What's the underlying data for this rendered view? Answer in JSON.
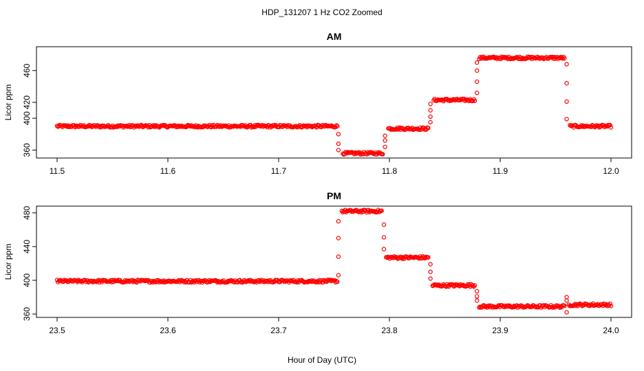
{
  "page_title": "HDP_131207  1 Hz CO2 Zoomed",
  "xlabel": "Hour of Day (UTC)",
  "colors": {
    "points": "#ff0000",
    "axes": "#000000",
    "background": "#ffffff"
  },
  "chart_data": [
    {
      "type": "scatter",
      "title": "AM",
      "ylabel": "Licor ppm",
      "xlim": [
        11.5,
        12.0
      ],
      "ylim": [
        350,
        490
      ],
      "x_ticks": [
        "11.5",
        "11.6",
        "11.7",
        "11.8",
        "11.9",
        "12.0"
      ],
      "y_ticks": [
        "360",
        "400",
        "420",
        "460"
      ],
      "grid": false,
      "segments": [
        {
          "x_start": 11.5,
          "x_end": 11.753,
          "y": 390
        },
        {
          "x_start": 11.758,
          "x_end": 11.794,
          "y": 356
        },
        {
          "x_start": 11.799,
          "x_end": 11.835,
          "y": 387
        },
        {
          "x_start": 11.84,
          "x_end": 11.877,
          "y": 423
        },
        {
          "x_start": 11.881,
          "x_end": 11.958,
          "y": 476
        },
        {
          "x_start": 11.963,
          "x_end": 12.0,
          "y": 390
        }
      ],
      "transitions": [
        {
          "x": 11.754,
          "y": [
            380,
            368,
            360
          ]
        },
        {
          "x": 11.796,
          "y": [
            364,
            372,
            378
          ]
        },
        {
          "x": 11.837,
          "y": [
            395,
            402,
            410,
            418
          ]
        },
        {
          "x": 11.879,
          "y": [
            432,
            446,
            460,
            470
          ]
        },
        {
          "x": 11.96,
          "y": [
            468,
            444,
            421,
            399
          ]
        }
      ]
    },
    {
      "type": "scatter",
      "title": "PM",
      "ylabel": "Licor ppm",
      "xlim": [
        23.5,
        24.0
      ],
      "ylim": [
        356,
        488
      ],
      "x_ticks": [
        "23.5",
        "23.6",
        "23.7",
        "23.8",
        "23.9",
        "24.0"
      ],
      "y_ticks": [
        "360",
        "400",
        "440",
        "480"
      ],
      "grid": false,
      "segments": [
        {
          "x_start": 23.5,
          "x_end": 23.753,
          "y": 399
        },
        {
          "x_start": 23.757,
          "x_end": 23.793,
          "y": 482
        },
        {
          "x_start": 23.797,
          "x_end": 23.835,
          "y": 427
        },
        {
          "x_start": 23.839,
          "x_end": 23.877,
          "y": 394
        },
        {
          "x_start": 23.881,
          "x_end": 23.958,
          "y": 369
        },
        {
          "x_start": 23.962,
          "x_end": 24.0,
          "y": 371
        }
      ],
      "transitions": [
        {
          "x": 23.754,
          "y": [
            406,
            428,
            450,
            470
          ]
        },
        {
          "x": 23.795,
          "y": [
            466,
            451,
            437
          ]
        },
        {
          "x": 23.837,
          "y": [
            419,
            410,
            402
          ]
        },
        {
          "x": 23.879,
          "y": [
            387,
            381,
            376
          ]
        },
        {
          "x": 23.96,
          "y": [
            362,
            380,
            376
          ]
        }
      ]
    }
  ]
}
